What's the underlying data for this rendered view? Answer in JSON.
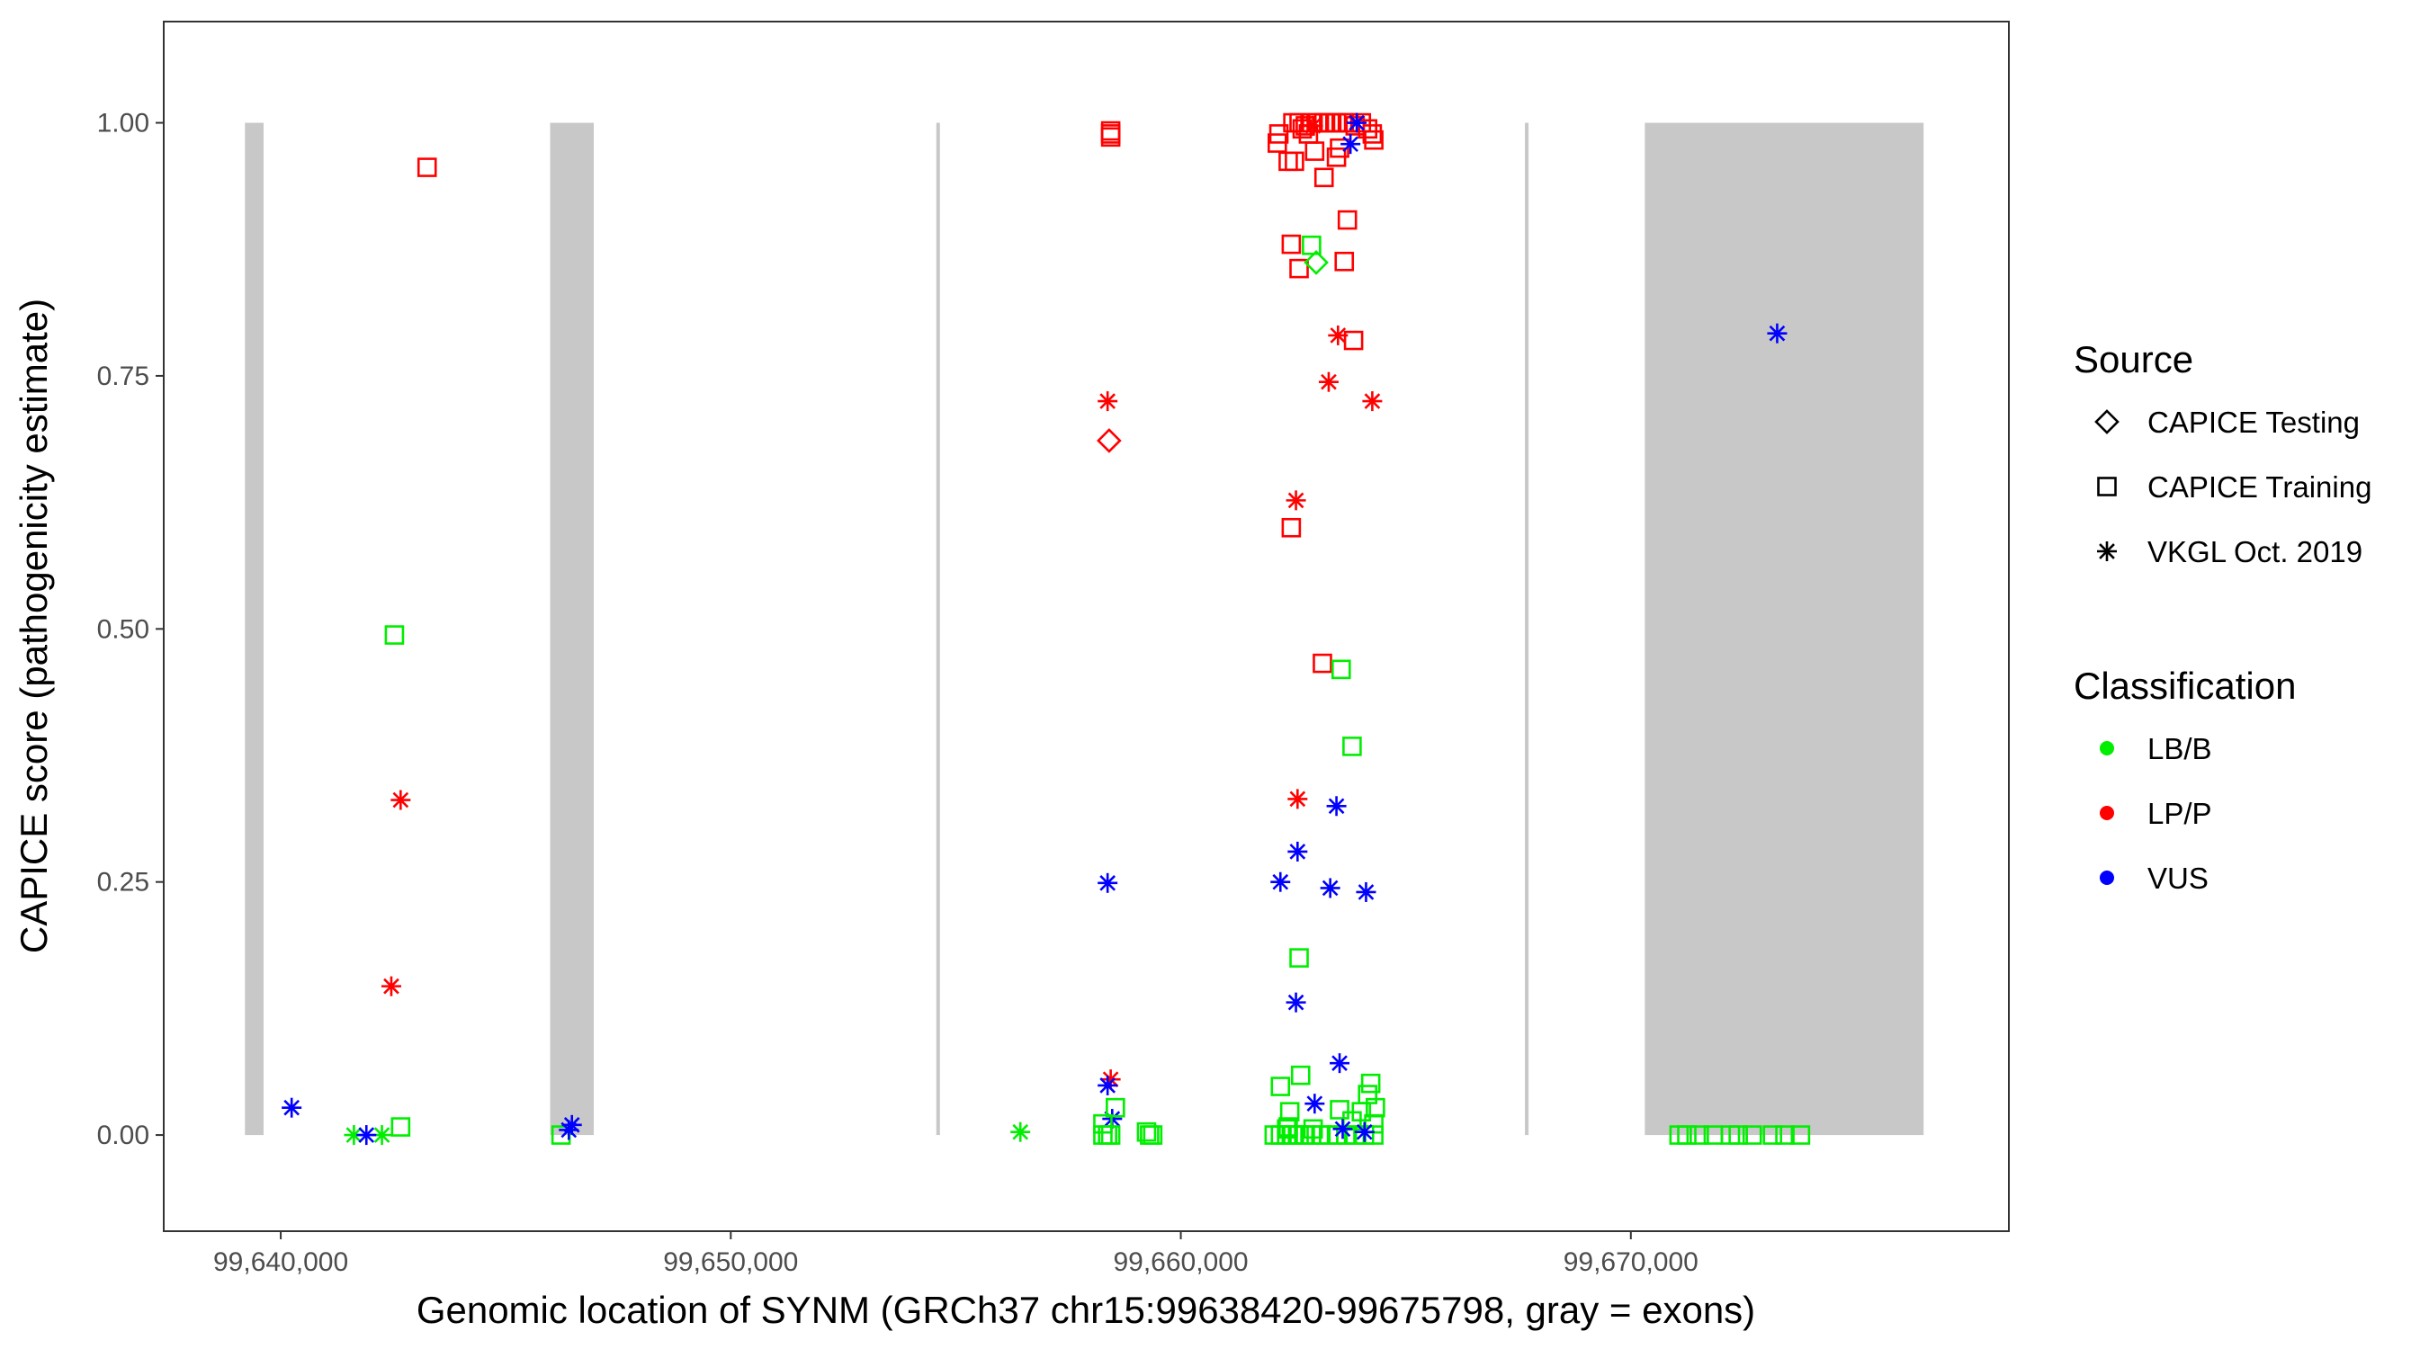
{
  "chart_data": {
    "type": "scatter",
    "xlabel": "Genomic location of SYNM (GRCh37 chr15:99638420-99675798, gray = exons)",
    "ylabel": "CAPICE score (pathogenicity estimate)",
    "xlim": [
      99637400,
      99678400
    ],
    "ylim": [
      -0.095,
      1.1
    ],
    "x_ticks": [
      99640000,
      99650000,
      99660000,
      99670000
    ],
    "x_tick_labels": [
      "99,640,000",
      "99,650,000",
      "99,660,000",
      "99,670,000"
    ],
    "y_ticks": [
      0,
      0.25,
      0.5,
      0.75,
      1.0
    ],
    "y_tick_labels": [
      "0.00",
      "0.25",
      "0.50",
      "0.75",
      "1.00"
    ],
    "grid": false,
    "exons": [
      [
        99639204,
        99639619
      ],
      [
        99645986,
        99646955
      ],
      [
        99654567,
        99654637
      ],
      [
        99667647,
        99667716
      ],
      [
        99670311,
        99676505
      ]
    ],
    "exon_color": "#c8c8c8",
    "legend": {
      "placement": "right",
      "source_title": "Source",
      "sources": [
        {
          "label": "CAPICE Testing",
          "shape": "diamond"
        },
        {
          "label": "CAPICE Training",
          "shape": "square"
        },
        {
          "label": "VKGL Oct. 2019",
          "shape": "asterisk"
        }
      ],
      "class_title": "Classification",
      "classes": [
        {
          "label": "LB/B",
          "color": "#00ee00"
        },
        {
          "label": "LP/P",
          "color": "#ff0000"
        },
        {
          "label": "VUS",
          "color": "#0000ff"
        }
      ]
    },
    "point_fields": [
      "position",
      "score",
      "source_index",
      "class_index"
    ],
    "points": [
      [
        99643252,
        0.956,
        1,
        1
      ],
      [
        99642526,
        0.494,
        1,
        0
      ],
      [
        99642664,
        0.331,
        2,
        1
      ],
      [
        99642457,
        0.147,
        2,
        1
      ],
      [
        99640242,
        0.027,
        2,
        2
      ],
      [
        99641626,
        0.0,
        2,
        0
      ],
      [
        99642249,
        0.0,
        2,
        0
      ],
      [
        99641903,
        0.0,
        2,
        2
      ],
      [
        99642664,
        0.008,
        1,
        0
      ],
      [
        99646228,
        0.0,
        1,
        0
      ],
      [
        99646401,
        0.005,
        2,
        2
      ],
      [
        99646470,
        0.01,
        2,
        2
      ],
      [
        99656435,
        0.003,
        2,
        0
      ],
      [
        99658442,
        0.992,
        1,
        1
      ],
      [
        99658442,
        0.986,
        1,
        1
      ],
      [
        99658442,
        0.989,
        1,
        1
      ],
      [
        99658373,
        0.725,
        2,
        1
      ],
      [
        99658407,
        0.686,
        0,
        1
      ],
      [
        99658373,
        0.249,
        2,
        2
      ],
      [
        99658442,
        0.055,
        2,
        1
      ],
      [
        99658373,
        0.049,
        2,
        2
      ],
      [
        99658476,
        0.016,
        2,
        2
      ],
      [
        99658546,
        0.027,
        1,
        0
      ],
      [
        99658269,
        0.0,
        1,
        0
      ],
      [
        99658373,
        0.0,
        1,
        0
      ],
      [
        99658442,
        0.0,
        1,
        0
      ],
      [
        99658269,
        0.011,
        1,
        0
      ],
      [
        99659238,
        0.003,
        1,
        0
      ],
      [
        99659307,
        0.0,
        1,
        0
      ],
      [
        99659376,
        0.0,
        1,
        0
      ],
      [
        99662179,
        0.989,
        1,
        1
      ],
      [
        99662144,
        0.98,
        1,
        1
      ],
      [
        99662386,
        0.962,
        1,
        1
      ],
      [
        99662525,
        0.962,
        1,
        1
      ],
      [
        99662974,
        0.972,
        1,
        1
      ],
      [
        99663459,
        0.966,
        1,
        1
      ],
      [
        99663528,
        0.975,
        1,
        1
      ],
      [
        99663182,
        0.946,
        1,
        1
      ],
      [
        99663701,
        0.904,
        1,
        1
      ],
      [
        99662455,
        0.88,
        1,
        1
      ],
      [
        99662628,
        0.856,
        1,
        1
      ],
      [
        99663632,
        0.863,
        1,
        1
      ],
      [
        99663839,
        0.785,
        1,
        1
      ],
      [
        99662455,
        0.6,
        1,
        1
      ],
      [
        99663147,
        0.466,
        1,
        1
      ],
      [
        99662490,
        1.0,
        1,
        1
      ],
      [
        99662628,
        1.0,
        1,
        1
      ],
      [
        99662767,
        0.997,
        1,
        1
      ],
      [
        99662905,
        1.0,
        1,
        1
      ],
      [
        99663044,
        1.0,
        1,
        1
      ],
      [
        99663182,
        1.0,
        1,
        1
      ],
      [
        99663320,
        1.0,
        1,
        1
      ],
      [
        99663459,
        1.0,
        1,
        1
      ],
      [
        99663597,
        1.0,
        1,
        1
      ],
      [
        99663736,
        1.0,
        1,
        1
      ],
      [
        99663874,
        0.997,
        1,
        1
      ],
      [
        99664012,
        1.0,
        1,
        1
      ],
      [
        99664151,
        0.994,
        1,
        1
      ],
      [
        99664255,
        0.989,
        1,
        1
      ],
      [
        99664289,
        0.983,
        1,
        1
      ],
      [
        99662698,
        0.994,
        1,
        1
      ],
      [
        99662836,
        0.989,
        1,
        1
      ],
      [
        99662940,
        0.997,
        2,
        1
      ],
      [
        99663493,
        0.79,
        2,
        1
      ],
      [
        99663286,
        0.744,
        2,
        1
      ],
      [
        99664255,
        0.725,
        2,
        1
      ],
      [
        99662559,
        0.627,
        2,
        1
      ],
      [
        99662594,
        0.332,
        2,
        1
      ],
      [
        99662905,
        0.879,
        1,
        0
      ],
      [
        99663009,
        0.862,
        0,
        0
      ],
      [
        99663563,
        0.46,
        1,
        0
      ],
      [
        99663805,
        0.384,
        1,
        0
      ],
      [
        99662628,
        0.175,
        1,
        0
      ],
      [
        99662663,
        0.059,
        1,
        0
      ],
      [
        99662213,
        0.048,
        1,
        0
      ],
      [
        99664220,
        0.051,
        1,
        0
      ],
      [
        99664151,
        0.04,
        1,
        0
      ],
      [
        99664324,
        0.027,
        1,
        0
      ],
      [
        99663528,
        0.025,
        1,
        0
      ],
      [
        99662421,
        0.023,
        1,
        0
      ],
      [
        99662386,
        0.008,
        1,
        0
      ],
      [
        99662940,
        0.006,
        1,
        0
      ],
      [
        99662352,
        0.006,
        1,
        0
      ],
      [
        99663805,
        0.014,
        1,
        0
      ],
      [
        99664289,
        0.011,
        1,
        0
      ],
      [
        99664012,
        0.023,
        1,
        0
      ],
      [
        99662075,
        0.0,
        1,
        0
      ],
      [
        99662213,
        0.0,
        1,
        0
      ],
      [
        99662352,
        0.0,
        1,
        0
      ],
      [
        99662490,
        0.0,
        1,
        0
      ],
      [
        99662628,
        0.0,
        1,
        0
      ],
      [
        99662767,
        0.0,
        1,
        0
      ],
      [
        99662905,
        0.0,
        1,
        0
      ],
      [
        99663113,
        0.0,
        1,
        0
      ],
      [
        99663286,
        0.0,
        1,
        0
      ],
      [
        99663459,
        0.0,
        1,
        0
      ],
      [
        99663667,
        0.0,
        1,
        0
      ],
      [
        99663874,
        0.0,
        1,
        0
      ],
      [
        99664082,
        0.0,
        1,
        0
      ],
      [
        99664289,
        0.0,
        1,
        0
      ],
      [
        99663909,
        1.0,
        2,
        2
      ],
      [
        99663770,
        0.979,
        2,
        2
      ],
      [
        99663459,
        0.325,
        2,
        2
      ],
      [
        99662594,
        0.28,
        2,
        2
      ],
      [
        99662213,
        0.25,
        2,
        2
      ],
      [
        99663320,
        0.244,
        2,
        2
      ],
      [
        99664116,
        0.24,
        2,
        2
      ],
      [
        99662559,
        0.131,
        2,
        2
      ],
      [
        99663528,
        0.071,
        2,
        2
      ],
      [
        99662974,
        0.031,
        2,
        2
      ],
      [
        99663597,
        0.006,
        2,
        2
      ],
      [
        99664082,
        0.003,
        2,
        2
      ],
      [
        99673251,
        0.792,
        2,
        2
      ],
      [
        99671071,
        0.0,
        1,
        0
      ],
      [
        99671244,
        0.0,
        1,
        0
      ],
      [
        99671521,
        0.0,
        1,
        0
      ],
      [
        99671832,
        0.0,
        1,
        0
      ],
      [
        99672213,
        0.0,
        1,
        0
      ],
      [
        99672386,
        0.0,
        1,
        0
      ],
      [
        99672697,
        0.0,
        1,
        0
      ],
      [
        99673147,
        0.0,
        1,
        0
      ],
      [
        99673424,
        0.0,
        1,
        0
      ],
      [
        99673770,
        0.0,
        1,
        0
      ]
    ]
  }
}
